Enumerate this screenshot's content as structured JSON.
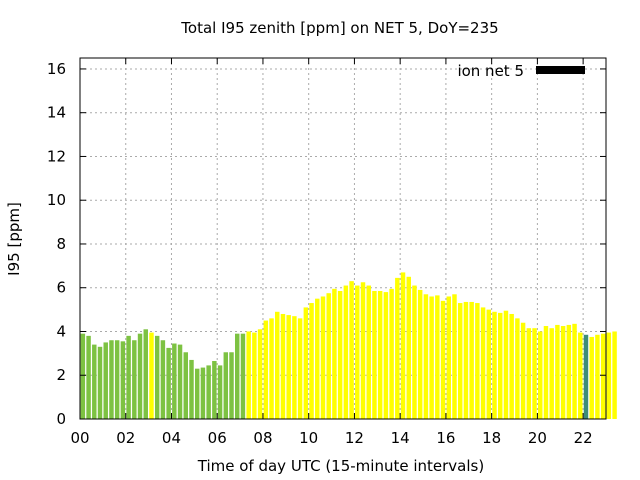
{
  "chart_data": {
    "type": "bar",
    "title": "Total I95 zenith [ppm] on NET 5, DoY=235",
    "xlabel": "Time of day UTC (15-minute intervals)",
    "ylabel": "I95 [ppm]",
    "xlim": [
      0,
      23
    ],
    "ylim": [
      0,
      16.5
    ],
    "xticks": [
      0,
      2,
      4,
      6,
      8,
      10,
      12,
      14,
      16,
      18,
      20,
      22
    ],
    "xtick_labels": [
      "00",
      "02",
      "04",
      "06",
      "08",
      "10",
      "12",
      "14",
      "16",
      "18",
      "20",
      "22"
    ],
    "yticks": [
      0,
      2,
      4,
      6,
      8,
      10,
      12,
      14,
      16
    ],
    "ytick_labels": [
      "0",
      "2",
      "4",
      "6",
      "8",
      "10",
      "12",
      "14",
      "16"
    ],
    "grid": true,
    "legend": {
      "label": "ion net 5",
      "position": "top-right",
      "color": "#000000"
    },
    "bin_hours": 0.25,
    "colors": {
      "g": "#7dc242",
      "y": "#ffff00",
      "t": "#3d8c78"
    },
    "color_codes": "ggggggggggggyggggggggggggggggyyyyyyyyyyyyyyyyyyyyyyyyyyyyyyyyyyyyyyyyyyyyyyyyyyyyyyyyyyytyyyyyyyygggggggg",
    "values": [
      3.9,
      3.8,
      3.4,
      3.3,
      3.5,
      3.6,
      3.6,
      3.55,
      3.8,
      3.6,
      3.9,
      4.1,
      3.95,
      3.8,
      3.6,
      3.25,
      3.45,
      3.4,
      3.05,
      2.7,
      2.3,
      2.35,
      2.45,
      2.65,
      2.45,
      3.05,
      3.05,
      3.9,
      3.9,
      4.0,
      3.95,
      4.1,
      4.5,
      4.6,
      4.9,
      4.8,
      4.75,
      4.7,
      4.6,
      5.1,
      5.3,
      5.5,
      5.6,
      5.75,
      5.95,
      5.85,
      6.1,
      6.3,
      6.1,
      6.25,
      6.1,
      5.85,
      5.85,
      5.8,
      5.95,
      6.45,
      6.7,
      6.5,
      6.1,
      5.9,
      5.7,
      5.6,
      5.65,
      5.4,
      5.6,
      5.7,
      5.3,
      5.35,
      5.35,
      5.3,
      5.1,
      5.0,
      4.9,
      4.85,
      4.95,
      4.8,
      4.6,
      4.4,
      4.15,
      4.15,
      4.0,
      4.25,
      4.15,
      4.3,
      4.25,
      4.3,
      4.35,
      3.95,
      3.85,
      3.75,
      3.85,
      3.9,
      3.95,
      4.0
    ]
  }
}
